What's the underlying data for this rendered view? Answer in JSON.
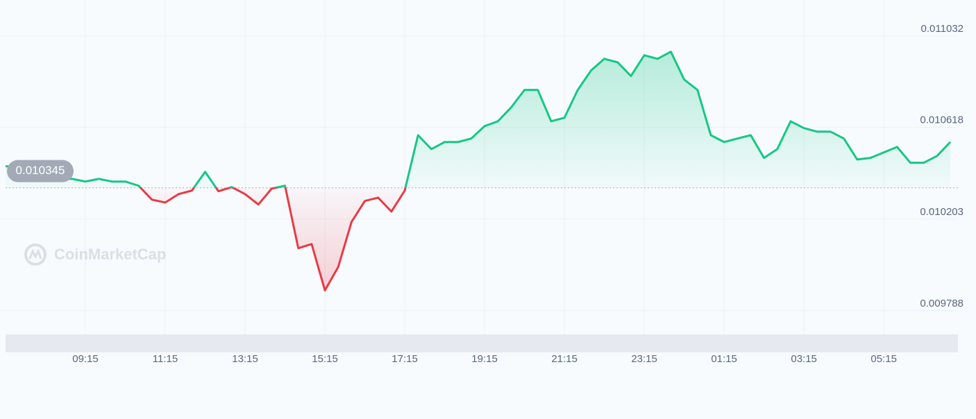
{
  "chart_data": {
    "type": "line",
    "watermark": "CoinMarketCap",
    "reference_value": 0.010345,
    "categories": [
      null,
      null,
      null,
      null,
      null,
      null,
      "09:15",
      null,
      null,
      null,
      null,
      null,
      "11:15",
      null,
      null,
      null,
      null,
      null,
      "13:15",
      null,
      null,
      null,
      null,
      null,
      "15:15",
      null,
      null,
      null,
      null,
      null,
      "17:15",
      null,
      null,
      null,
      null,
      null,
      "19:15",
      null,
      null,
      null,
      null,
      null,
      "21:15",
      null,
      null,
      null,
      null,
      null,
      "23:15",
      null,
      null,
      null,
      null,
      null,
      "01:15",
      null,
      null,
      null,
      null,
      null,
      "03:15",
      null,
      null,
      null,
      null,
      null,
      "05:15",
      null,
      null,
      null,
      null,
      null
    ],
    "values": [
      0.010442,
      0.010442,
      0.010426,
      0.01041,
      0.010385,
      0.010385,
      0.010373,
      0.010385,
      0.010373,
      0.010373,
      0.010354,
      0.010291,
      0.010278,
      0.010316,
      0.010332,
      0.010417,
      0.010329,
      0.010348,
      0.010316,
      0.010269,
      0.010341,
      0.010354,
      0.010071,
      0.01009,
      0.00988,
      0.009986,
      0.01019,
      0.010285,
      0.0103,
      0.010237,
      0.010332,
      0.010583,
      0.01052,
      0.010552,
      0.010552,
      0.010568,
      0.010624,
      0.010646,
      0.010709,
      0.010788,
      0.010788,
      0.010646,
      0.010662,
      0.010788,
      0.010876,
      0.010929,
      0.010913,
      0.010851,
      0.010945,
      0.010929,
      0.010961,
      0.010835,
      0.010788,
      0.010583,
      0.010552,
      0.010568,
      0.010583,
      0.01048,
      0.01052,
      0.010646,
      0.010615,
      0.010599,
      0.010599,
      0.010568,
      0.010473,
      0.01048,
      0.010505,
      0.01053,
      0.010458,
      0.010458,
      0.010489,
      0.010552
    ],
    "ylim": [
      0.009687,
      0.011164
    ],
    "yticks": [
      0.009788,
      0.010203,
      0.010618,
      0.011032
    ],
    "grid": true,
    "up_color": "#16c784",
    "down_color": "#ea3943"
  }
}
